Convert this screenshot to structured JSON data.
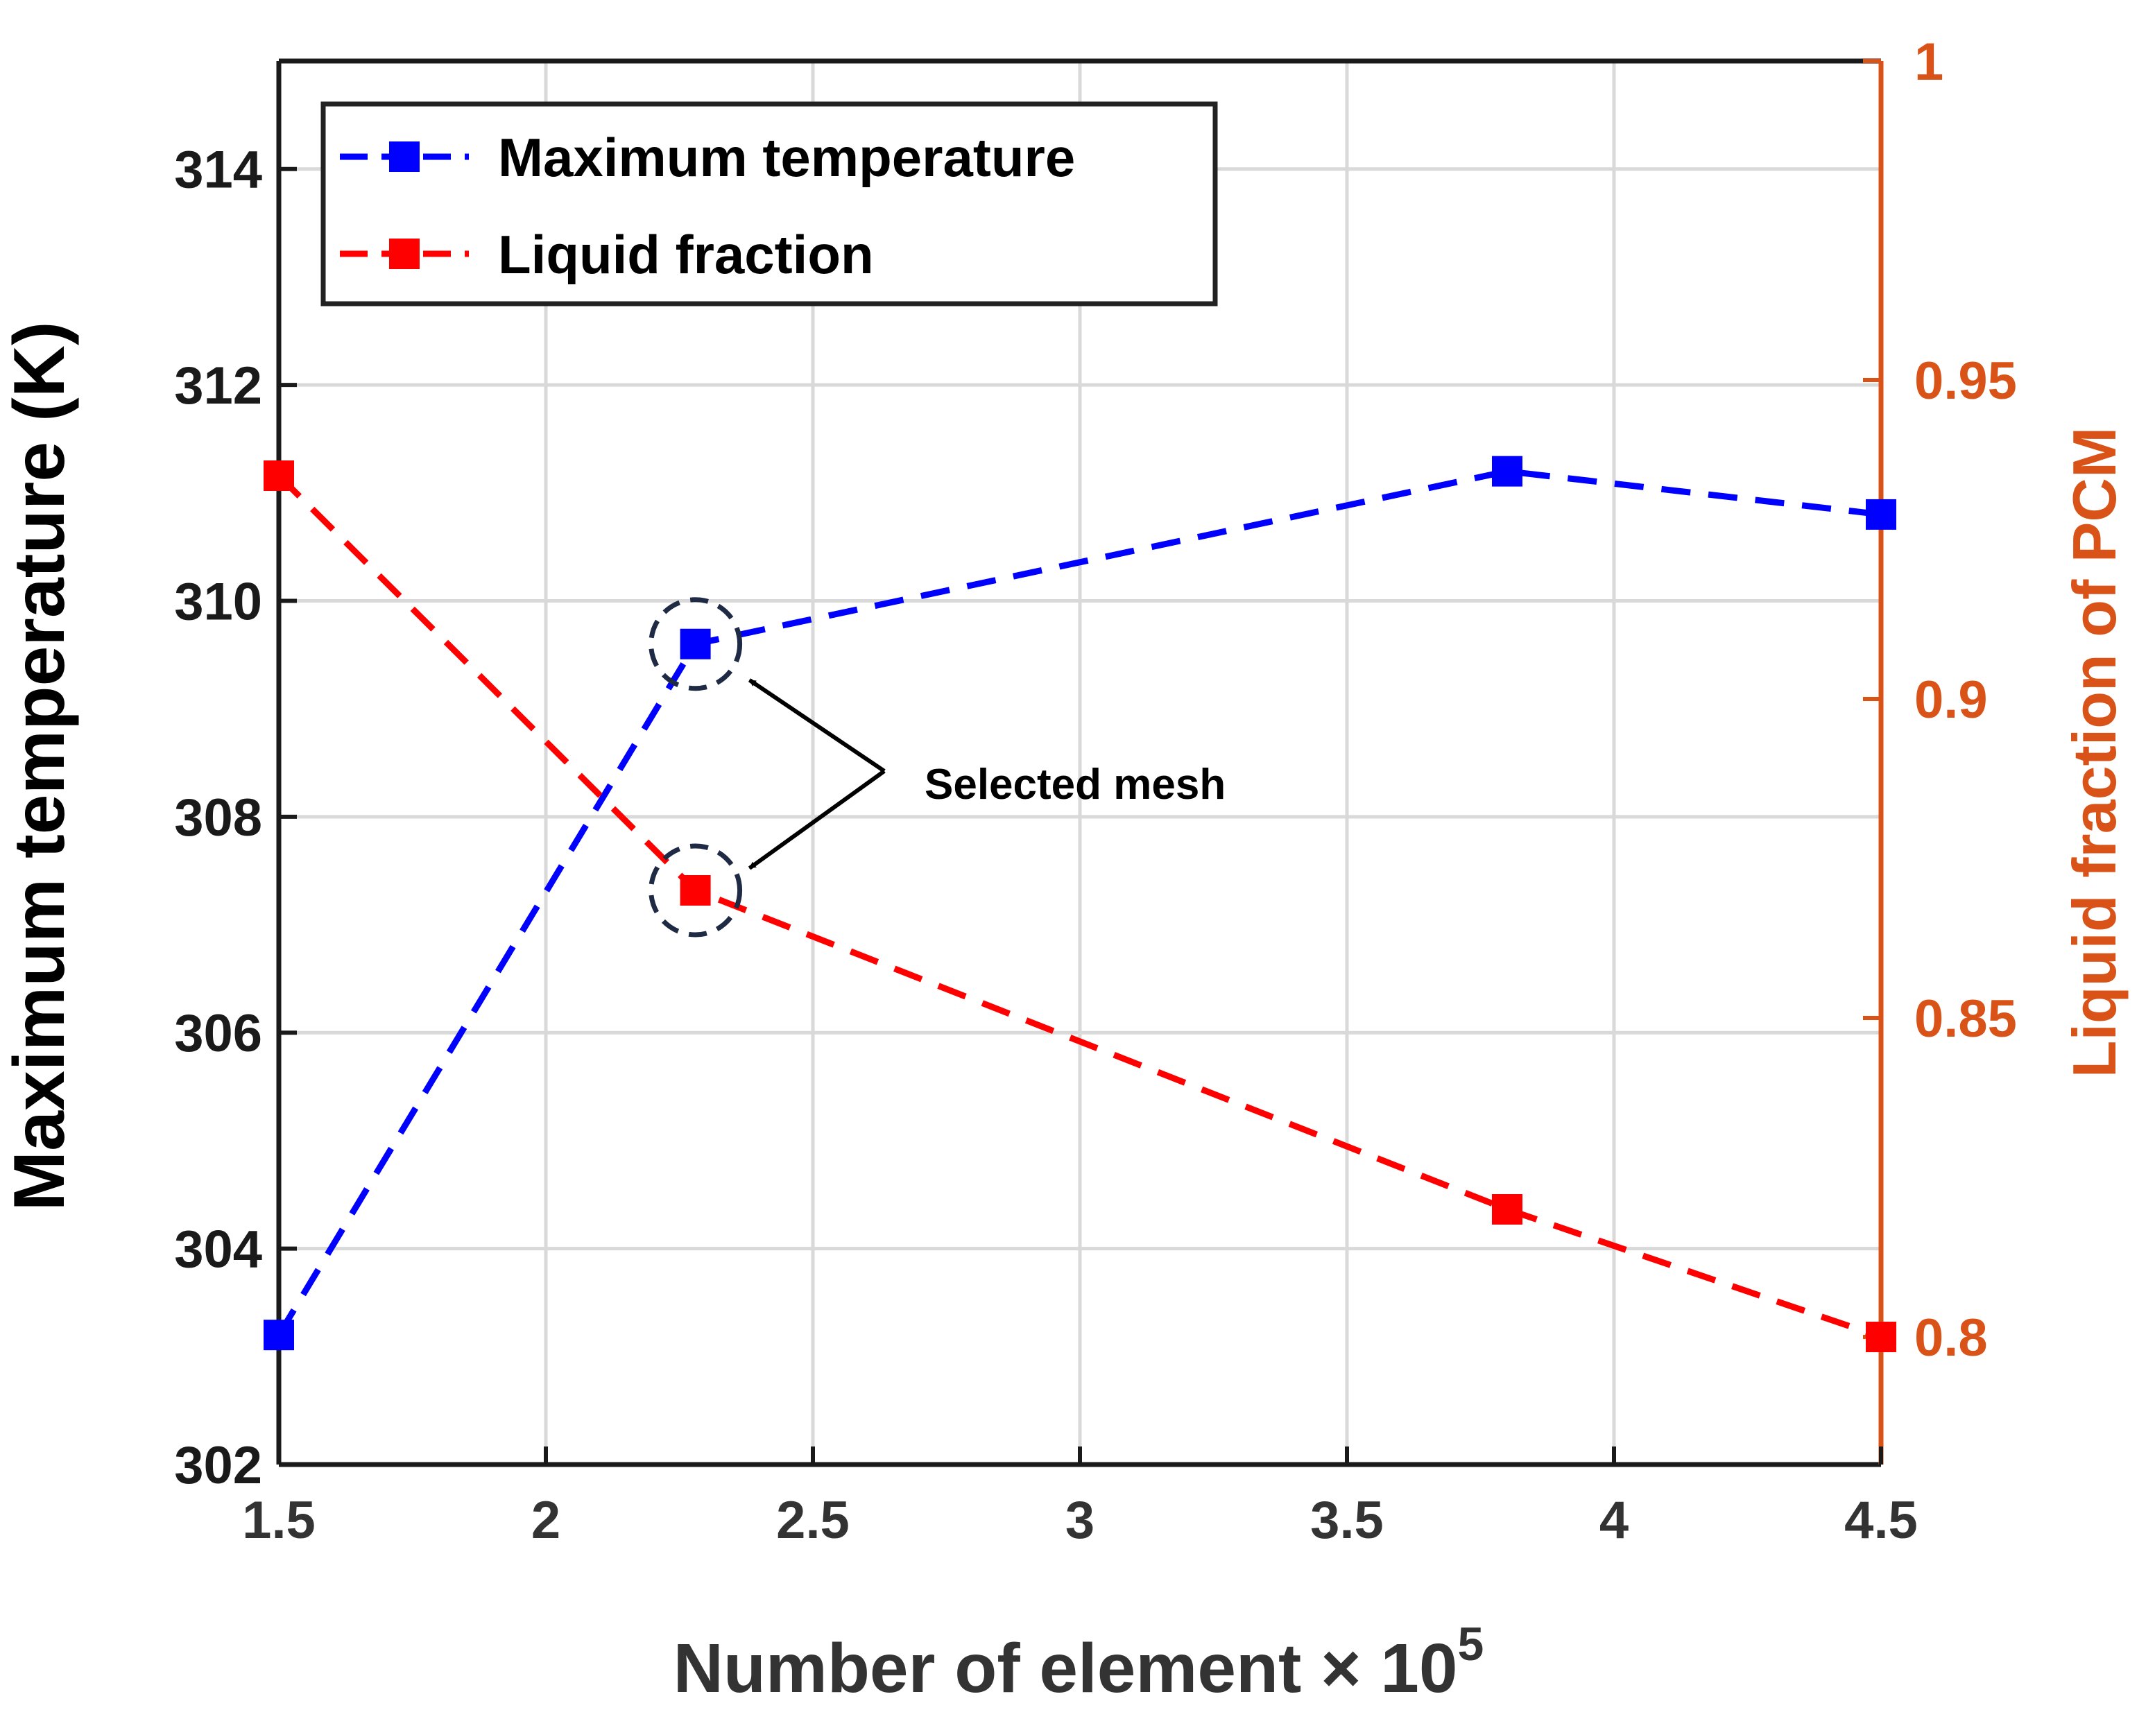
{
  "chart_data": {
    "type": "line",
    "xlabel": "Number of element × 10",
    "xlabel_exponent": "5",
    "ylabel_left": "Maximum temperature (K)",
    "ylabel_right": "Liquid fraction of PCM",
    "xlim": [
      1.5,
      4.5
    ],
    "ylim_left": [
      302,
      315
    ],
    "ylim_right": [
      0.78,
      1.0
    ],
    "x_ticks": [
      "1.5",
      "2",
      "2.5",
      "3",
      "3.5",
      "4",
      "4.5"
    ],
    "y_left_ticks": [
      "302",
      "304",
      "306",
      "308",
      "310",
      "312",
      "314"
    ],
    "y_right_ticks": [
      "0.8",
      "0.85",
      "0.9",
      "0.95",
      "1"
    ],
    "grid": true,
    "legend_position": "top-left",
    "colors": {
      "left_axis": "#1a1a1a",
      "right_axis": "#D95319",
      "series_temp": "#0000FF",
      "series_lf": "#FF0000",
      "annotation": "#000000",
      "circle": "#1f2a44"
    },
    "series": [
      {
        "name": "Maximum temperature",
        "axis": "left",
        "x": [
          1.5,
          2.28,
          3.8,
          4.5
        ],
        "values": [
          303.2,
          309.6,
          311.2,
          310.8
        ]
      },
      {
        "name": "Liquid fraction",
        "axis": "right",
        "x": [
          1.5,
          2.28,
          3.8,
          4.5
        ],
        "values": [
          0.935,
          0.87,
          0.82,
          0.8
        ]
      }
    ],
    "annotations": [
      {
        "text": "Selected mesh",
        "target_x": 2.28
      }
    ]
  }
}
